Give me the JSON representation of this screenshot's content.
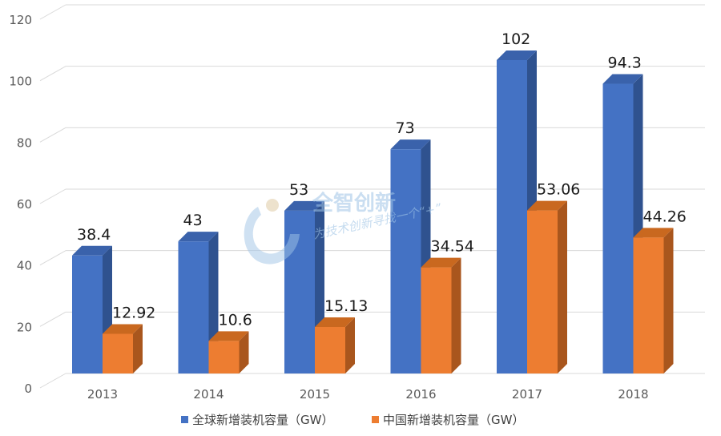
{
  "chart_data": {
    "type": "bar",
    "categories": [
      "2013",
      "2014",
      "2015",
      "2016",
      "2017",
      "2018"
    ],
    "series": [
      {
        "name": "全球新增装机容量（GW）",
        "values": [
          38.4,
          43,
          53,
          73,
          102,
          94.3
        ],
        "color": "#4472c4",
        "side_color": "#2f528f",
        "top_color": "#3a62ab"
      },
      {
        "name": "中国新增装机容量（GW）",
        "values": [
          12.92,
          10.6,
          15.13,
          34.54,
          53.06,
          44.26
        ],
        "color": "#ed7d31",
        "side_color": "#a9561d",
        "top_color": "#c9681f"
      }
    ],
    "yticks": [
      "0",
      "20",
      "40",
      "60",
      "80",
      "100",
      "120"
    ],
    "ylim": [
      0,
      120
    ],
    "grid": true,
    "legend_position": "bottom",
    "title": "",
    "xlabel": "",
    "ylabel": ""
  },
  "watermark": {
    "title": "全智创新",
    "subtitle": "为技术创新寻找一个“+”"
  }
}
